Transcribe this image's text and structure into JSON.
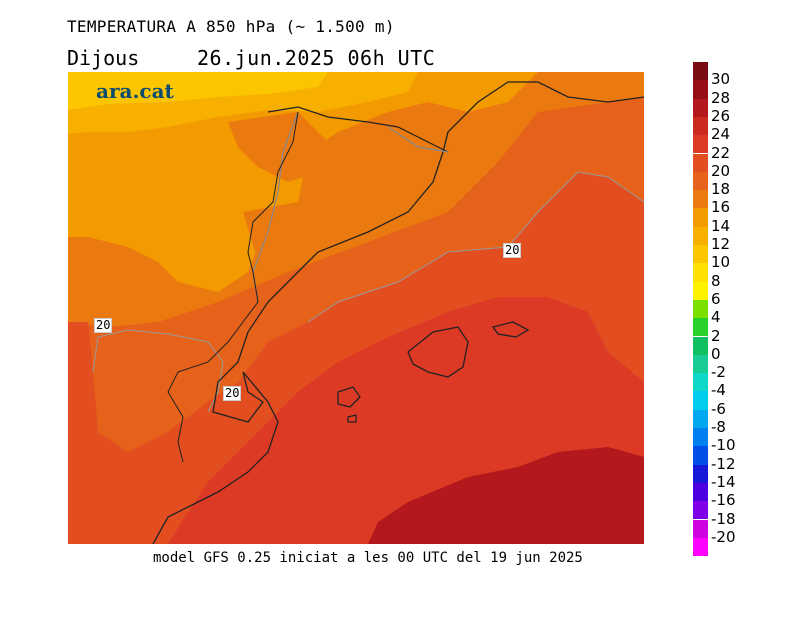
{
  "header": {
    "title": "TEMPERATURA A 850 hPa (~ 1.500 m)",
    "day": "Dijous",
    "date": "26.jun.2025 06h UTC"
  },
  "logo": {
    "text": "ara.cat"
  },
  "footer": {
    "text": "model GFS 0.25 iniciat a les 00 UTC del 19 jun 2025"
  },
  "contour_labels": [
    "20",
    "20",
    "20"
  ],
  "legend": {
    "items": [
      {
        "label": "30",
        "color": "#7a0a14"
      },
      {
        "label": "28",
        "color": "#960f17"
      },
      {
        "label": "26",
        "color": "#b2181c"
      },
      {
        "label": "24",
        "color": "#cc2a21"
      },
      {
        "label": "22",
        "color": "#dc3a25"
      },
      {
        "label": "20",
        "color": "#e24e20"
      },
      {
        "label": "18",
        "color": "#e6621a"
      },
      {
        "label": "16",
        "color": "#ea7a10"
      },
      {
        "label": "14",
        "color": "#f29a00"
      },
      {
        "label": "12",
        "color": "#f7b000"
      },
      {
        "label": "10",
        "color": "#fbc600"
      },
      {
        "label": "8",
        "color": "#ffe000"
      },
      {
        "label": "6",
        "color": "#fff200"
      },
      {
        "label": "4",
        "color": "#7be000"
      },
      {
        "label": "2",
        "color": "#28d02a"
      },
      {
        "label": "0",
        "color": "#10c060"
      },
      {
        "label": "-2",
        "color": "#18cc96"
      },
      {
        "label": "-4",
        "color": "#10d8c8"
      },
      {
        "label": "-6",
        "color": "#00ccf0"
      },
      {
        "label": "-8",
        "color": "#00a8f0"
      },
      {
        "label": "-10",
        "color": "#0080f0"
      },
      {
        "label": "-12",
        "color": "#0050e8"
      },
      {
        "label": "-14",
        "color": "#1818d8"
      },
      {
        "label": "-16",
        "color": "#4a00e0"
      },
      {
        "label": "-18",
        "color": "#8000e8"
      },
      {
        "label": "-20",
        "color": "#d000e0"
      },
      {
        "label": "",
        "color": "#ff00ff"
      }
    ]
  }
}
